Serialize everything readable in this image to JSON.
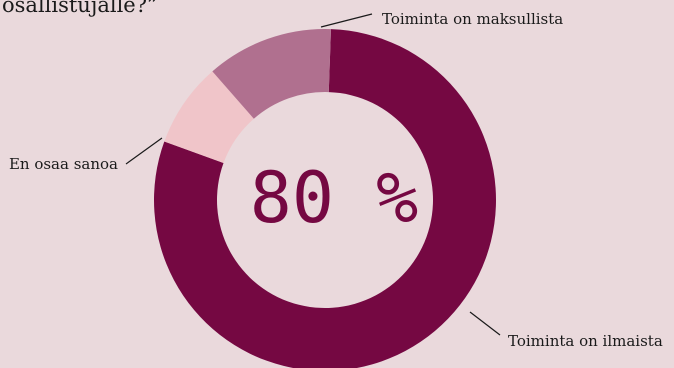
{
  "title_fragment": "osallistujalle?”",
  "chart_data": {
    "type": "pie",
    "style": "donut",
    "center_label": "80 %",
    "categories": [
      "Toiminta on ilmaista",
      "En osaa sanoa",
      "Toiminta on maksullista"
    ],
    "values": [
      80,
      8,
      12
    ],
    "colors": [
      "#750842",
      "#f0c5c9",
      "#b0708f"
    ],
    "legend": "none (slice labels with leader lines)"
  }
}
